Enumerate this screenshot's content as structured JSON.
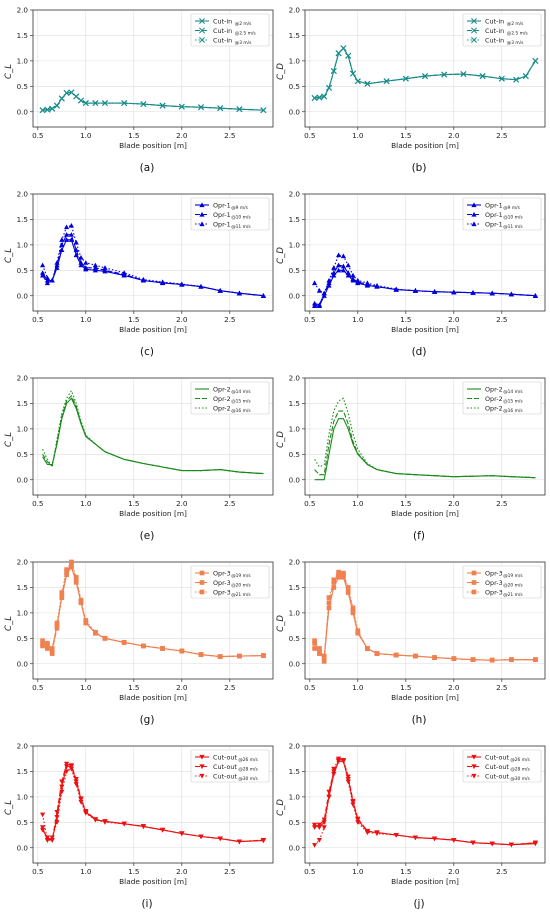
{
  "figure": {
    "xlabel": "Blade position [m]",
    "xlim": [
      0.45,
      2.95
    ],
    "xticks": [
      "0.5",
      "1.0",
      "1.5",
      "2.0",
      "2.5"
    ],
    "ylim": [
      -0.3,
      2.0
    ],
    "yticks": [
      "0.0",
      "0.5",
      "1.0",
      "1.5",
      "2.0"
    ],
    "grid": true,
    "legend_position": "top-right"
  },
  "chart_data": [
    {
      "id": "a",
      "caption": "(a)",
      "type": "line",
      "ylabel": "C_L",
      "color": "#1a8c8c",
      "marker": "x",
      "x": [
        0.55,
        0.6,
        0.65,
        0.7,
        0.75,
        0.8,
        0.85,
        0.9,
        0.95,
        1.0,
        1.1,
        1.2,
        1.4,
        1.6,
        1.8,
        2.0,
        2.2,
        2.4,
        2.6,
        2.85
      ],
      "series": [
        {
          "name": "Cut-in",
          "sub": "@2 m/s",
          "values": [
            0.03,
            0.04,
            0.06,
            0.12,
            0.26,
            0.37,
            0.38,
            0.3,
            0.22,
            0.17,
            0.17,
            0.17,
            0.17,
            0.15,
            0.12,
            0.1,
            0.09,
            0.07,
            0.05,
            0.03
          ]
        },
        {
          "name": "Cut-in",
          "sub": "@2.5 m/s",
          "values": [
            0.03,
            0.04,
            0.06,
            0.12,
            0.26,
            0.37,
            0.38,
            0.3,
            0.22,
            0.17,
            0.17,
            0.17,
            0.17,
            0.15,
            0.12,
            0.1,
            0.09,
            0.07,
            0.05,
            0.03
          ]
        },
        {
          "name": "Cut-in",
          "sub": "@3 m/s",
          "values": [
            0.03,
            0.04,
            0.06,
            0.12,
            0.26,
            0.37,
            0.38,
            0.3,
            0.22,
            0.17,
            0.17,
            0.17,
            0.17,
            0.15,
            0.12,
            0.1,
            0.09,
            0.07,
            0.05,
            0.03
          ]
        }
      ]
    },
    {
      "id": "b",
      "caption": "(b)",
      "type": "line",
      "ylabel": "C_D",
      "color": "#1a8c8c",
      "marker": "x",
      "x": [
        0.55,
        0.6,
        0.65,
        0.7,
        0.75,
        0.8,
        0.85,
        0.9,
        0.95,
        1.0,
        1.1,
        1.3,
        1.5,
        1.7,
        1.9,
        2.1,
        2.3,
        2.5,
        2.65,
        2.75,
        2.85
      ],
      "series": [
        {
          "name": "Cut-in",
          "sub": "@2 m/s",
          "values": [
            0.27,
            0.28,
            0.3,
            0.47,
            0.8,
            1.15,
            1.25,
            1.1,
            0.75,
            0.6,
            0.55,
            0.6,
            0.65,
            0.7,
            0.73,
            0.74,
            0.7,
            0.65,
            0.63,
            0.7,
            1.0
          ]
        },
        {
          "name": "Cut-in",
          "sub": "@2.5 m/s",
          "values": [
            0.27,
            0.28,
            0.3,
            0.47,
            0.8,
            1.15,
            1.25,
            1.1,
            0.75,
            0.6,
            0.55,
            0.6,
            0.65,
            0.7,
            0.73,
            0.74,
            0.7,
            0.65,
            0.63,
            0.7,
            1.0
          ]
        },
        {
          "name": "Cut-in",
          "sub": "@3 m/s",
          "values": [
            0.27,
            0.28,
            0.3,
            0.47,
            0.8,
            1.15,
            1.25,
            1.1,
            0.75,
            0.6,
            0.55,
            0.6,
            0.65,
            0.7,
            0.73,
            0.74,
            0.7,
            0.65,
            0.63,
            0.7,
            1.0
          ]
        }
      ]
    },
    {
      "id": "c",
      "caption": "(c)",
      "type": "line",
      "ylabel": "C_L",
      "color": "#0000dd",
      "marker": "^",
      "x": [
        0.55,
        0.6,
        0.65,
        0.7,
        0.75,
        0.8,
        0.85,
        0.9,
        0.95,
        1.0,
        1.1,
        1.2,
        1.4,
        1.6,
        1.8,
        2.0,
        2.2,
        2.4,
        2.6,
        2.85
      ],
      "series": [
        {
          "name": "Opr-1",
          "sub": "@9 m/s",
          "values": [
            0.45,
            0.3,
            0.3,
            0.55,
            0.9,
            1.1,
            1.1,
            0.8,
            0.6,
            0.52,
            0.5,
            0.48,
            0.4,
            0.3,
            0.25,
            0.22,
            0.18,
            0.1,
            0.05,
            0.0
          ]
        },
        {
          "name": "Opr-1",
          "sub": "@10 m/s",
          "values": [
            0.4,
            0.25,
            0.3,
            0.6,
            1.0,
            1.2,
            1.2,
            0.9,
            0.65,
            0.55,
            0.55,
            0.5,
            0.42,
            0.3,
            0.26,
            0.22,
            0.18,
            0.1,
            0.05,
            0.0
          ]
        },
        {
          "name": "Opr-1",
          "sub": "@11 m/s",
          "values": [
            0.6,
            0.35,
            0.3,
            0.65,
            1.1,
            1.35,
            1.38,
            1.05,
            0.75,
            0.65,
            0.6,
            0.55,
            0.45,
            0.32,
            0.27,
            0.23,
            0.18,
            0.1,
            0.05,
            0.0
          ]
        }
      ]
    },
    {
      "id": "d",
      "caption": "(d)",
      "type": "line",
      "ylabel": "C_D",
      "color": "#0000dd",
      "marker": "^",
      "x": [
        0.55,
        0.6,
        0.65,
        0.7,
        0.75,
        0.8,
        0.85,
        0.9,
        0.95,
        1.0,
        1.1,
        1.2,
        1.4,
        1.6,
        1.8,
        2.0,
        2.2,
        2.4,
        2.6,
        2.85
      ],
      "series": [
        {
          "name": "Opr-1",
          "sub": "@9 m/s",
          "values": [
            -0.2,
            -0.2,
            0.0,
            0.2,
            0.4,
            0.5,
            0.5,
            0.4,
            0.3,
            0.25,
            0.2,
            0.18,
            0.12,
            0.1,
            0.08,
            0.07,
            0.06,
            0.05,
            0.03,
            0.0
          ]
        },
        {
          "name": "Opr-1",
          "sub": "@10 m/s",
          "values": [
            -0.15,
            -0.18,
            0.05,
            0.25,
            0.45,
            0.6,
            0.58,
            0.45,
            0.33,
            0.27,
            0.22,
            0.18,
            0.12,
            0.1,
            0.08,
            0.07,
            0.06,
            0.05,
            0.03,
            0.0
          ]
        },
        {
          "name": "Opr-1",
          "sub": "@11 m/s",
          "values": [
            0.25,
            0.1,
            0.05,
            0.3,
            0.55,
            0.8,
            0.78,
            0.6,
            0.4,
            0.3,
            0.25,
            0.2,
            0.13,
            0.1,
            0.08,
            0.07,
            0.06,
            0.05,
            0.03,
            0.0
          ]
        }
      ]
    },
    {
      "id": "e",
      "caption": "(e)",
      "type": "line",
      "ylabel": "C_L",
      "color": "#1a8a1a",
      "marker": "none",
      "x": [
        0.55,
        0.6,
        0.65,
        0.7,
        0.75,
        0.8,
        0.85,
        0.9,
        0.95,
        1.0,
        1.1,
        1.2,
        1.4,
        1.6,
        1.8,
        2.0,
        2.2,
        2.4,
        2.6,
        2.85
      ],
      "series": [
        {
          "name": "Opr-2",
          "sub": "@14 m/s",
          "values": [
            0.45,
            0.3,
            0.3,
            0.7,
            1.2,
            1.5,
            1.6,
            1.4,
            1.1,
            0.85,
            0.7,
            0.55,
            0.4,
            0.32,
            0.25,
            0.18,
            0.18,
            0.2,
            0.15,
            0.12
          ]
        },
        {
          "name": "Opr-2",
          "sub": "@15 m/s",
          "values": [
            0.5,
            0.35,
            0.28,
            0.75,
            1.25,
            1.55,
            1.65,
            1.45,
            1.12,
            0.86,
            0.7,
            0.55,
            0.4,
            0.32,
            0.25,
            0.18,
            0.18,
            0.2,
            0.15,
            0.12
          ]
        },
        {
          "name": "Opr-2",
          "sub": "@16 m/s",
          "values": [
            0.6,
            0.4,
            0.25,
            0.8,
            1.3,
            1.6,
            1.75,
            1.5,
            1.15,
            0.88,
            0.7,
            0.55,
            0.4,
            0.32,
            0.25,
            0.18,
            0.18,
            0.2,
            0.15,
            0.12
          ]
        }
      ]
    },
    {
      "id": "f",
      "caption": "(f)",
      "type": "line",
      "ylabel": "C_D",
      "color": "#1a8a1a",
      "marker": "none",
      "x": [
        0.55,
        0.6,
        0.65,
        0.7,
        0.75,
        0.8,
        0.85,
        0.9,
        0.95,
        1.0,
        1.1,
        1.2,
        1.4,
        1.6,
        1.8,
        2.0,
        2.2,
        2.4,
        2.6,
        2.85
      ],
      "series": [
        {
          "name": "Opr-2",
          "sub": "@14 m/s",
          "values": [
            0.0,
            0.0,
            0.0,
            0.5,
            1.0,
            1.2,
            1.2,
            1.0,
            0.7,
            0.5,
            0.3,
            0.2,
            0.12,
            0.1,
            0.08,
            0.06,
            0.07,
            0.08,
            0.06,
            0.04
          ]
        },
        {
          "name": "Opr-2",
          "sub": "@15 m/s",
          "values": [
            0.2,
            0.1,
            0.1,
            0.7,
            1.15,
            1.35,
            1.35,
            1.1,
            0.75,
            0.52,
            0.3,
            0.2,
            0.12,
            0.1,
            0.08,
            0.06,
            0.07,
            0.08,
            0.06,
            0.04
          ]
        },
        {
          "name": "Opr-2",
          "sub": "@16 m/s",
          "values": [
            0.4,
            0.25,
            0.3,
            0.9,
            1.35,
            1.55,
            1.6,
            1.3,
            0.9,
            0.6,
            0.32,
            0.2,
            0.12,
            0.1,
            0.08,
            0.06,
            0.07,
            0.08,
            0.06,
            0.04
          ]
        }
      ]
    },
    {
      "id": "g",
      "caption": "(g)",
      "type": "line",
      "ylabel": "C_L",
      "color": "#f08050",
      "marker": "s",
      "x": [
        0.55,
        0.6,
        0.65,
        0.7,
        0.75,
        0.8,
        0.85,
        0.9,
        0.95,
        1.0,
        1.1,
        1.2,
        1.4,
        1.6,
        1.8,
        2.0,
        2.2,
        2.4,
        2.6,
        2.85
      ],
      "series": [
        {
          "name": "Opr-3",
          "sub": "@19 m/s",
          "values": [
            0.4,
            0.35,
            0.3,
            0.75,
            1.3,
            1.75,
            1.9,
            1.6,
            1.2,
            0.8,
            0.6,
            0.5,
            0.42,
            0.35,
            0.3,
            0.25,
            0.18,
            0.14,
            0.15,
            0.16
          ]
        },
        {
          "name": "Opr-3",
          "sub": "@20 m/s",
          "values": [
            0.35,
            0.4,
            0.25,
            0.7,
            1.35,
            1.8,
            1.95,
            1.65,
            1.22,
            0.82,
            0.6,
            0.5,
            0.42,
            0.35,
            0.3,
            0.25,
            0.18,
            0.14,
            0.15,
            0.16
          ]
        },
        {
          "name": "Opr-3",
          "sub": "@21 m/s",
          "values": [
            0.45,
            0.3,
            0.2,
            0.8,
            1.4,
            1.85,
            2.0,
            1.7,
            1.25,
            0.85,
            0.62,
            0.5,
            0.42,
            0.35,
            0.3,
            0.25,
            0.18,
            0.14,
            0.15,
            0.16
          ]
        }
      ]
    },
    {
      "id": "h",
      "caption": "(h)",
      "type": "line",
      "ylabel": "C_D",
      "color": "#f08050",
      "marker": "s",
      "x": [
        0.55,
        0.6,
        0.65,
        0.7,
        0.75,
        0.8,
        0.85,
        0.9,
        0.95,
        1.0,
        1.1,
        1.2,
        1.4,
        1.6,
        1.8,
        2.0,
        2.2,
        2.4,
        2.6,
        2.85
      ],
      "series": [
        {
          "name": "Opr-3",
          "sub": "@19 m/s",
          "values": [
            0.4,
            0.2,
            0.1,
            1.1,
            1.5,
            1.7,
            1.7,
            1.4,
            1.0,
            0.6,
            0.3,
            0.2,
            0.17,
            0.15,
            0.12,
            0.1,
            0.08,
            0.07,
            0.08,
            0.08
          ]
        },
        {
          "name": "Opr-3",
          "sub": "@20 m/s",
          "values": [
            0.3,
            0.25,
            0.15,
            1.2,
            1.6,
            1.75,
            1.75,
            1.45,
            1.05,
            0.62,
            0.3,
            0.2,
            0.17,
            0.15,
            0.12,
            0.1,
            0.08,
            0.07,
            0.08,
            0.08
          ]
        },
        {
          "name": "Opr-3",
          "sub": "@21 m/s",
          "values": [
            0.45,
            0.3,
            0.05,
            1.3,
            1.65,
            1.8,
            1.78,
            1.5,
            1.1,
            0.65,
            0.3,
            0.2,
            0.17,
            0.15,
            0.12,
            0.1,
            0.08,
            0.07,
            0.08,
            0.08
          ]
        }
      ]
    },
    {
      "id": "i",
      "caption": "(i)",
      "type": "line",
      "ylabel": "C_L",
      "color": "#ee1111",
      "marker": "v",
      "x": [
        0.55,
        0.6,
        0.65,
        0.7,
        0.75,
        0.8,
        0.85,
        0.9,
        0.95,
        1.0,
        1.1,
        1.2,
        1.4,
        1.6,
        1.8,
        2.0,
        2.2,
        2.4,
        2.6,
        2.85
      ],
      "series": [
        {
          "name": "Cut-out",
          "sub": "@26 m/s",
          "values": [
            0.35,
            0.2,
            0.15,
            0.6,
            1.2,
            1.6,
            1.6,
            1.3,
            0.95,
            0.7,
            0.55,
            0.52,
            0.47,
            0.42,
            0.35,
            0.28,
            0.22,
            0.18,
            0.12,
            0.14
          ]
        },
        {
          "name": "Cut-out",
          "sub": "@28 m/s",
          "values": [
            0.4,
            0.15,
            0.15,
            0.7,
            1.3,
            1.65,
            1.62,
            1.35,
            0.97,
            0.72,
            0.56,
            0.52,
            0.47,
            0.42,
            0.35,
            0.28,
            0.22,
            0.18,
            0.12,
            0.15
          ]
        },
        {
          "name": "Cut-out",
          "sub": "@30 m/s",
          "values": [
            0.65,
            0.15,
            0.2,
            0.5,
            1.1,
            1.5,
            1.55,
            1.25,
            0.9,
            0.68,
            0.55,
            0.5,
            0.47,
            0.42,
            0.35,
            0.28,
            0.22,
            0.18,
            0.12,
            0.15
          ]
        }
      ]
    },
    {
      "id": "j",
      "caption": "(j)",
      "type": "line",
      "ylabel": "C_D",
      "color": "#ee1111",
      "marker": "v",
      "x": [
        0.55,
        0.6,
        0.65,
        0.7,
        0.75,
        0.8,
        0.85,
        0.9,
        0.95,
        1.0,
        1.1,
        1.2,
        1.4,
        1.6,
        1.8,
        2.0,
        2.2,
        2.4,
        2.6,
        2.85
      ],
      "series": [
        {
          "name": "Cut-out",
          "sub": "@26 m/s",
          "values": [
            0.45,
            0.4,
            0.5,
            1.0,
            1.45,
            1.7,
            1.7,
            1.35,
            0.9,
            0.55,
            0.32,
            0.3,
            0.25,
            0.2,
            0.18,
            0.15,
            0.1,
            0.08,
            0.06,
            0.08
          ]
        },
        {
          "name": "Cut-out",
          "sub": "@28 m/s",
          "values": [
            0.4,
            0.45,
            0.55,
            1.1,
            1.5,
            1.72,
            1.72,
            1.4,
            0.92,
            0.57,
            0.33,
            0.3,
            0.25,
            0.2,
            0.18,
            0.15,
            0.1,
            0.08,
            0.06,
            0.1
          ]
        },
        {
          "name": "Cut-out",
          "sub": "@30 m/s",
          "values": [
            0.05,
            0.15,
            0.4,
            1.0,
            1.55,
            1.75,
            1.72,
            1.3,
            0.85,
            0.5,
            0.3,
            0.28,
            0.25,
            0.2,
            0.18,
            0.15,
            0.1,
            0.08,
            0.06,
            0.1
          ]
        }
      ]
    }
  ]
}
